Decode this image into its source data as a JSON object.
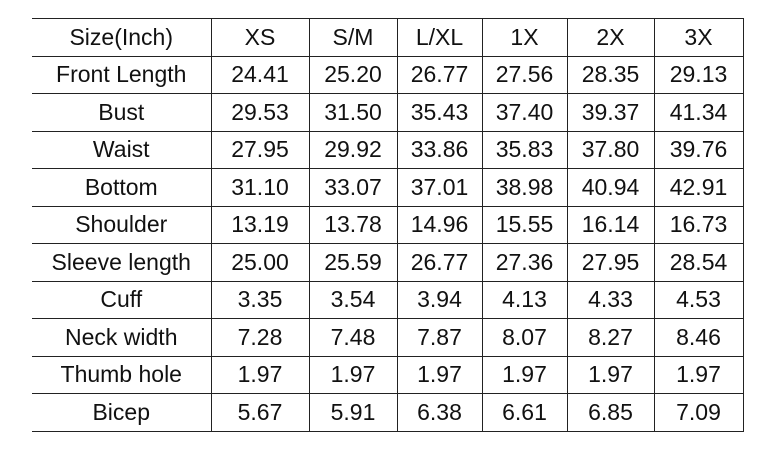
{
  "table": {
    "headers": [
      "Size(Inch)",
      "XS",
      "S/M",
      "L/XL",
      "1X",
      "2X",
      "3X"
    ],
    "rows": [
      [
        "Front Length",
        "24.41",
        "25.20",
        "26.77",
        "27.56",
        "28.35",
        "29.13"
      ],
      [
        "Bust",
        "29.53",
        "31.50",
        "35.43",
        "37.40",
        "39.37",
        "41.34"
      ],
      [
        "Waist",
        "27.95",
        "29.92",
        "33.86",
        "35.83",
        "37.80",
        "39.76"
      ],
      [
        "Bottom",
        "31.10",
        "33.07",
        "37.01",
        "38.98",
        "40.94",
        "42.91"
      ],
      [
        "Shoulder",
        "13.19",
        "13.78",
        "14.96",
        "15.55",
        "16.14",
        "16.73"
      ],
      [
        "Sleeve length",
        "25.00",
        "25.59",
        "26.77",
        "27.36",
        "27.95",
        "28.54"
      ],
      [
        "Cuff",
        "3.35",
        "3.54",
        "3.94",
        "4.13",
        "4.33",
        "4.53"
      ],
      [
        "Neck width",
        "7.28",
        "7.48",
        "7.87",
        "8.07",
        "8.27",
        "8.46"
      ],
      [
        "Thumb hole",
        "1.97",
        "1.97",
        "1.97",
        "1.97",
        "1.97",
        "1.97"
      ],
      [
        "Bicep",
        "5.67",
        "5.91",
        "6.38",
        "6.61",
        "6.85",
        "7.09"
      ]
    ]
  }
}
